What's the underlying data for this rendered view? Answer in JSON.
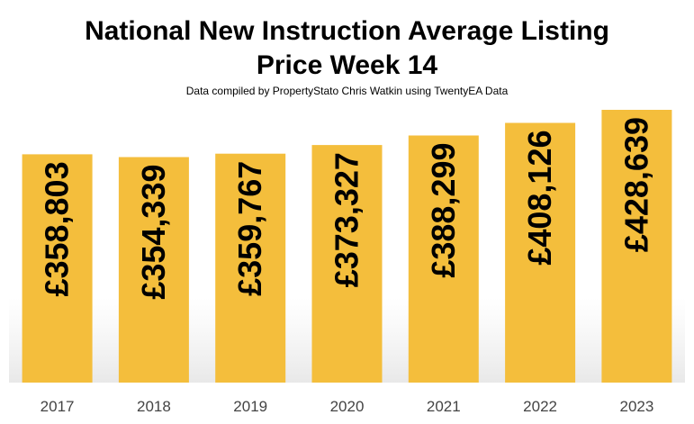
{
  "chart_data": {
    "type": "bar",
    "title_line1": "National New Instruction Average Listing",
    "title_line2": "Price Week 14",
    "subtitle": "Data compiled by PropertyStato Chris Watkin using TwentyEA Data",
    "categories": [
      "2017",
      "2018",
      "2019",
      "2020",
      "2021",
      "2022",
      "2023"
    ],
    "values": [
      358803,
      354339,
      359767,
      373327,
      388299,
      408126,
      428639
    ],
    "data_labels": [
      "£358,803",
      "£354,339",
      "£359,767",
      "£373,327",
      "£388,299",
      "£408,126",
      "£428,639"
    ],
    "xlabel": "",
    "ylabel": "",
    "ylim": [
      0,
      440000
    ],
    "grid": false,
    "bar_color": "#F4BE3C",
    "label_color": "#000000"
  }
}
